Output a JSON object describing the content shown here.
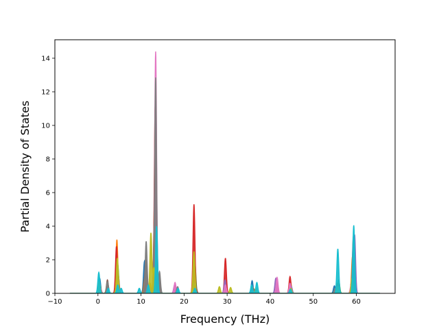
{
  "chart_data": {
    "type": "line",
    "title": "",
    "xlabel": "Frequency (THz)",
    "ylabel": "Partial Density of States",
    "xlim": [
      -10,
      69
    ],
    "ylim": [
      0,
      15.1
    ],
    "xticks": [
      -10,
      0,
      10,
      20,
      30,
      40,
      50,
      60
    ],
    "yticks": [
      0,
      2,
      4,
      6,
      8,
      10,
      12,
      14
    ],
    "grid": false,
    "legend": "none",
    "x_start": -6.5,
    "x_end": 65.5,
    "series": [
      {
        "color": "#1f77b4",
        "peaks": [
          [
            0.4,
            0.9
          ],
          [
            2.3,
            0.5
          ],
          [
            4.5,
            1.0
          ],
          [
            10.8,
            1.9
          ],
          [
            11.5,
            0.4
          ],
          [
            13.3,
            8.3
          ],
          [
            17.9,
            0.4
          ],
          [
            22.3,
            0.9
          ],
          [
            29.4,
            0.2
          ],
          [
            35.8,
            0.75
          ],
          [
            41.5,
            0.2
          ],
          [
            44.7,
            0.3
          ],
          [
            54.9,
            0.45
          ],
          [
            55.9,
            0.4
          ],
          [
            59.3,
            3.1
          ]
        ]
      },
      {
        "color": "#ff7f0e",
        "peaks": [
          [
            0.3,
            0.6
          ],
          [
            2.1,
            0.4
          ],
          [
            4.4,
            3.2
          ],
          [
            10.9,
            1.0
          ],
          [
            12.1,
            0.6
          ],
          [
            13.2,
            6.2
          ],
          [
            18.0,
            0.3
          ],
          [
            22.2,
            1.4
          ],
          [
            29.5,
            0.5
          ],
          [
            36.0,
            0.35
          ],
          [
            41.4,
            0.4
          ],
          [
            44.7,
            0.7
          ],
          [
            55.5,
            0.6
          ],
          [
            59.1,
            2.2
          ]
        ]
      },
      {
        "color": "#2ca02c",
        "peaks": [
          [
            0.5,
            0.5
          ],
          [
            4.6,
            1.7
          ],
          [
            11.0,
            0.6
          ],
          [
            13.5,
            5.5
          ],
          [
            22.5,
            1.9
          ],
          [
            29.7,
            0.3
          ],
          [
            36.1,
            0.3
          ],
          [
            44.8,
            0.5
          ],
          [
            55.9,
            0.8
          ],
          [
            59.4,
            1.5
          ]
        ]
      },
      {
        "color": "#d62728",
        "peaks": [
          [
            0.2,
            0.4
          ],
          [
            4.3,
            2.8
          ],
          [
            11.2,
            0.5
          ],
          [
            13.3,
            11.2
          ],
          [
            18.3,
            0.2
          ],
          [
            22.3,
            5.3
          ],
          [
            29.6,
            2.1
          ],
          [
            35.8,
            0.3
          ],
          [
            41.5,
            0.6
          ],
          [
            44.6,
            1.0
          ],
          [
            55.8,
            0.5
          ],
          [
            58.9,
            0.7
          ]
        ]
      },
      {
        "color": "#9467bd",
        "peaks": [
          [
            0.4,
            0.6
          ],
          [
            4.5,
            1.5
          ],
          [
            11.4,
            0.8
          ],
          [
            13.6,
            4.5
          ],
          [
            17.8,
            0.5
          ],
          [
            22.6,
            0.6
          ],
          [
            29.5,
            0.8
          ],
          [
            41.3,
            0.9
          ],
          [
            44.9,
            0.4
          ],
          [
            55.6,
            0.3
          ],
          [
            59.6,
            3.5
          ]
        ]
      },
      {
        "color": "#8c564b",
        "peaks": [
          [
            2.2,
            0.8
          ],
          [
            4.7,
            1.1
          ],
          [
            11.1,
            2.0
          ],
          [
            13.2,
            5.2
          ],
          [
            14.2,
            1.1
          ],
          [
            22.7,
            0.5
          ],
          [
            36.2,
            0.25
          ],
          [
            59.1,
            0.6
          ]
        ]
      },
      {
        "color": "#e377c2",
        "peaks": [
          [
            0.6,
            0.3
          ],
          [
            4.4,
            0.9
          ],
          [
            11.6,
            0.5
          ],
          [
            13.4,
            14.4
          ],
          [
            17.9,
            0.65
          ],
          [
            22.4,
            0.3
          ],
          [
            29.6,
            0.5
          ],
          [
            41.6,
            0.95
          ],
          [
            44.6,
            0.6
          ],
          [
            58.8,
            0.5
          ]
        ]
      },
      {
        "color": "#7f7f7f",
        "peaks": [
          [
            0.5,
            0.3
          ],
          [
            2.2,
            0.7
          ],
          [
            4.6,
            1.4
          ],
          [
            11.2,
            3.1
          ],
          [
            12.9,
            0.7
          ],
          [
            13.4,
            12.8
          ],
          [
            14.3,
            1.3
          ],
          [
            18.5,
            0.4
          ],
          [
            22.2,
            0.6
          ],
          [
            35.9,
            0.4
          ],
          [
            55.1,
            0.3
          ],
          [
            59.3,
            3.4
          ]
        ]
      },
      {
        "color": "#bcbd22",
        "peaks": [
          [
            0.3,
            0.7
          ],
          [
            4.5,
            2.1
          ],
          [
            12.3,
            3.6
          ],
          [
            13.0,
            1.5
          ],
          [
            22.3,
            2.5
          ],
          [
            28.2,
            0.4
          ],
          [
            30.8,
            0.35
          ],
          [
            36.7,
            0.3
          ],
          [
            44.8,
            0.3
          ],
          [
            55.7,
            0.4
          ],
          [
            59.0,
            0.9
          ]
        ]
      },
      {
        "color": "#17becf",
        "peaks": [
          [
            0.2,
            1.25
          ],
          [
            2.4,
            0.3
          ],
          [
            4.6,
            0.5
          ],
          [
            5.4,
            0.3
          ],
          [
            9.6,
            0.3
          ],
          [
            11.7,
            0.5
          ],
          [
            13.6,
            4.0
          ],
          [
            18.6,
            0.3
          ],
          [
            22.5,
            0.3
          ],
          [
            35.7,
            0.5
          ],
          [
            36.9,
            0.65
          ],
          [
            44.7,
            0.25
          ],
          [
            55.7,
            2.65
          ],
          [
            59.4,
            4.05
          ]
        ]
      }
    ]
  }
}
